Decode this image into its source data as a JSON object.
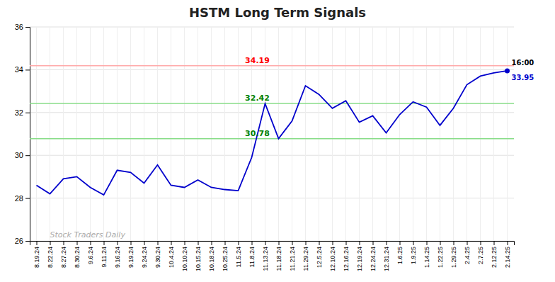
{
  "chart_data": {
    "type": "line",
    "title": "HSTM Long Term Signals",
    "categories": [
      "8.19.24",
      "8.22.24",
      "8.27.24",
      "8.30.24",
      "9.6.24",
      "9.11.24",
      "9.16.24",
      "9.19.24",
      "9.24.24",
      "9.30.24",
      "10.4.24",
      "10.10.24",
      "10.15.24",
      "10.18.24",
      "10.25.24",
      "11.5.24",
      "11.8.24",
      "11.13.24",
      "11.18.24",
      "11.21.24",
      "11.29.24",
      "12.5.24",
      "12.10.24",
      "12.16.24",
      "12.19.24",
      "12.24.24",
      "12.31.24",
      "1.6.25",
      "1.9.25",
      "1.14.25",
      "1.22.25",
      "1.29.25",
      "2.4.25",
      "2.7.25",
      "2.12.25",
      "2.14.25"
    ],
    "values": [
      28.6,
      28.2,
      28.9,
      29.0,
      28.5,
      28.15,
      29.3,
      29.2,
      28.7,
      29.55,
      28.6,
      28.5,
      28.85,
      28.5,
      28.4,
      28.35,
      29.9,
      32.42,
      30.78,
      31.6,
      33.25,
      32.85,
      32.2,
      32.55,
      31.55,
      31.85,
      31.05,
      31.9,
      32.5,
      32.25,
      31.4,
      32.2,
      33.3,
      33.7,
      33.85,
      33.95
    ],
    "color": "#0000cc",
    "hlines": [
      {
        "value": 34.19,
        "label": "34.19",
        "color": "#ffaaaa",
        "label_color": "red"
      },
      {
        "value": 32.42,
        "label": "32.42",
        "color": "#88dd88",
        "label_color": "green"
      },
      {
        "value": 30.78,
        "label": "30.78",
        "color": "#88dd88",
        "label_color": "green"
      }
    ],
    "end_label": "16:00",
    "end_label_color": "black",
    "end_value_label": "33.95",
    "watermark": {
      "text": "Stock Traders Daily",
      "color": "#aaaaaa"
    },
    "ylim": [
      26,
      36
    ],
    "yticks": [
      26,
      28,
      30,
      32,
      34,
      36
    ],
    "grid": true
  }
}
